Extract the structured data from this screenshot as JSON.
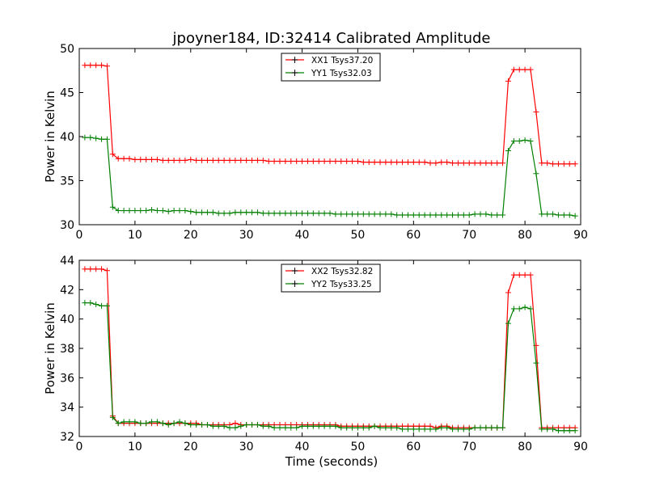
{
  "figure_title": "jpoyner184, ID:32414 Calibrated Amplitude",
  "colors": {
    "xx": "#ff0000",
    "yy": "#008000"
  },
  "chart_data": [
    {
      "type": "line",
      "title": "jpoyner184, ID:32414 Calibrated Amplitude",
      "xlabel": "",
      "ylabel": "Power in Kelvin",
      "xlim": [
        0,
        90
      ],
      "ylim": [
        30,
        50
      ],
      "xticks": [
        "0",
        "10",
        "20",
        "30",
        "40",
        "50",
        "60",
        "70",
        "80",
        "90"
      ],
      "yticks": [
        "30",
        "35",
        "40",
        "45",
        "50"
      ],
      "legend_position": "top-center",
      "marker": "+",
      "x": [
        1,
        2,
        3,
        4,
        5,
        6,
        7,
        8,
        9,
        10,
        11,
        12,
        13,
        14,
        15,
        16,
        17,
        18,
        19,
        20,
        21,
        22,
        23,
        24,
        25,
        26,
        27,
        28,
        29,
        30,
        31,
        32,
        33,
        34,
        35,
        36,
        37,
        38,
        39,
        40,
        41,
        42,
        43,
        44,
        45,
        46,
        47,
        48,
        49,
        50,
        51,
        52,
        53,
        54,
        55,
        56,
        57,
        58,
        59,
        60,
        61,
        62,
        63,
        64,
        65,
        66,
        67,
        68,
        69,
        70,
        71,
        72,
        73,
        74,
        75,
        76,
        77,
        78,
        79,
        80,
        81,
        82,
        83,
        84,
        85,
        86,
        87,
        88,
        89
      ],
      "series": [
        {
          "name": "XX1 Tsys37.20",
          "color": "#ff0000",
          "values": [
            48.1,
            48.1,
            48.1,
            48.1,
            48.0,
            38.0,
            37.5,
            37.5,
            37.5,
            37.4,
            37.4,
            37.4,
            37.4,
            37.4,
            37.3,
            37.3,
            37.3,
            37.3,
            37.3,
            37.4,
            37.3,
            37.3,
            37.3,
            37.3,
            37.3,
            37.3,
            37.3,
            37.3,
            37.3,
            37.3,
            37.3,
            37.3,
            37.3,
            37.2,
            37.2,
            37.2,
            37.2,
            37.2,
            37.2,
            37.2,
            37.2,
            37.2,
            37.2,
            37.2,
            37.2,
            37.2,
            37.2,
            37.2,
            37.2,
            37.2,
            37.1,
            37.1,
            37.1,
            37.1,
            37.1,
            37.1,
            37.1,
            37.1,
            37.1,
            37.1,
            37.1,
            37.1,
            37.0,
            37.0,
            37.1,
            37.1,
            37.0,
            37.0,
            37.0,
            37.0,
            37.0,
            37.0,
            37.0,
            37.0,
            37.0,
            37.0,
            46.3,
            47.6,
            47.6,
            47.6,
            47.6,
            42.8,
            37.0,
            37.0,
            36.9,
            36.9,
            36.9,
            36.9,
            36.9
          ]
        },
        {
          "name": "YY1 Tsys32.03",
          "color": "#008000",
          "values": [
            39.9,
            39.9,
            39.8,
            39.7,
            39.7,
            32.0,
            31.6,
            31.6,
            31.6,
            31.6,
            31.6,
            31.6,
            31.7,
            31.6,
            31.6,
            31.5,
            31.6,
            31.6,
            31.6,
            31.5,
            31.4,
            31.4,
            31.4,
            31.4,
            31.3,
            31.3,
            31.3,
            31.4,
            31.4,
            31.4,
            31.4,
            31.4,
            31.3,
            31.3,
            31.3,
            31.3,
            31.3,
            31.3,
            31.3,
            31.3,
            31.3,
            31.3,
            31.3,
            31.3,
            31.3,
            31.2,
            31.2,
            31.2,
            31.2,
            31.2,
            31.2,
            31.2,
            31.2,
            31.2,
            31.2,
            31.2,
            31.1,
            31.1,
            31.1,
            31.1,
            31.1,
            31.1,
            31.1,
            31.1,
            31.1,
            31.1,
            31.1,
            31.1,
            31.1,
            31.1,
            31.2,
            31.2,
            31.2,
            31.1,
            31.1,
            31.1,
            38.4,
            39.5,
            39.5,
            39.6,
            39.5,
            35.8,
            31.2,
            31.2,
            31.2,
            31.1,
            31.1,
            31.1,
            31.0
          ]
        }
      ]
    },
    {
      "type": "line",
      "title": "",
      "xlabel": "Time (seconds)",
      "ylabel": "Power in Kelvin",
      "xlim": [
        0,
        90
      ],
      "ylim": [
        32,
        44
      ],
      "xticks": [
        "0",
        "10",
        "20",
        "30",
        "40",
        "50",
        "60",
        "70",
        "80",
        "90"
      ],
      "yticks": [
        "32",
        "34",
        "36",
        "38",
        "40",
        "42",
        "44"
      ],
      "legend_position": "top-center",
      "marker": "+",
      "x": [
        1,
        2,
        3,
        4,
        5,
        6,
        7,
        8,
        9,
        10,
        11,
        12,
        13,
        14,
        15,
        16,
        17,
        18,
        19,
        20,
        21,
        22,
        23,
        24,
        25,
        26,
        27,
        28,
        29,
        30,
        31,
        32,
        33,
        34,
        35,
        36,
        37,
        38,
        39,
        40,
        41,
        42,
        43,
        44,
        45,
        46,
        47,
        48,
        49,
        50,
        51,
        52,
        53,
        54,
        55,
        56,
        57,
        58,
        59,
        60,
        61,
        62,
        63,
        64,
        65,
        66,
        67,
        68,
        69,
        70,
        71,
        72,
        73,
        74,
        75,
        76,
        77,
        78,
        79,
        80,
        81,
        82,
        83,
        84,
        85,
        86,
        87,
        88,
        89
      ],
      "series": [
        {
          "name": "XX2 Tsys32.82",
          "color": "#ff0000",
          "values": [
            43.4,
            43.4,
            43.4,
            43.4,
            43.3,
            33.4,
            32.9,
            32.9,
            32.9,
            32.9,
            32.9,
            32.9,
            32.9,
            32.9,
            32.9,
            32.9,
            32.9,
            32.9,
            32.9,
            32.9,
            32.9,
            32.8,
            32.8,
            32.8,
            32.8,
            32.8,
            32.8,
            32.9,
            32.8,
            32.8,
            32.8,
            32.8,
            32.8,
            32.8,
            32.8,
            32.8,
            32.8,
            32.8,
            32.8,
            32.8,
            32.8,
            32.8,
            32.8,
            32.8,
            32.8,
            32.8,
            32.7,
            32.7,
            32.7,
            32.7,
            32.7,
            32.7,
            32.7,
            32.7,
            32.7,
            32.7,
            32.7,
            32.7,
            32.7,
            32.7,
            32.7,
            32.7,
            32.7,
            32.6,
            32.7,
            32.7,
            32.6,
            32.6,
            32.6,
            32.6,
            32.6,
            32.6,
            32.6,
            32.6,
            32.6,
            32.6,
            41.8,
            43.0,
            43.0,
            43.0,
            43.0,
            38.2,
            32.6,
            32.6,
            32.6,
            32.6,
            32.6,
            32.6,
            32.6
          ]
        },
        {
          "name": "YY2 Tsys33.25",
          "color": "#008000",
          "values": [
            41.1,
            41.1,
            41.0,
            40.9,
            40.9,
            33.3,
            32.9,
            33.0,
            33.0,
            33.0,
            32.9,
            32.9,
            33.0,
            33.0,
            32.9,
            32.8,
            32.9,
            33.0,
            32.9,
            32.8,
            32.8,
            32.8,
            32.8,
            32.7,
            32.7,
            32.7,
            32.6,
            32.6,
            32.7,
            32.8,
            32.8,
            32.8,
            32.7,
            32.7,
            32.6,
            32.6,
            32.6,
            32.6,
            32.6,
            32.7,
            32.7,
            32.7,
            32.7,
            32.7,
            32.7,
            32.7,
            32.6,
            32.6,
            32.6,
            32.6,
            32.6,
            32.6,
            32.7,
            32.6,
            32.6,
            32.6,
            32.6,
            32.5,
            32.5,
            32.5,
            32.5,
            32.5,
            32.5,
            32.5,
            32.6,
            32.6,
            32.5,
            32.5,
            32.5,
            32.5,
            32.6,
            32.6,
            32.6,
            32.6,
            32.6,
            32.6,
            39.7,
            40.7,
            40.7,
            40.8,
            40.7,
            37.0,
            32.5,
            32.5,
            32.5,
            32.4,
            32.4,
            32.4,
            32.4
          ]
        }
      ]
    }
  ]
}
